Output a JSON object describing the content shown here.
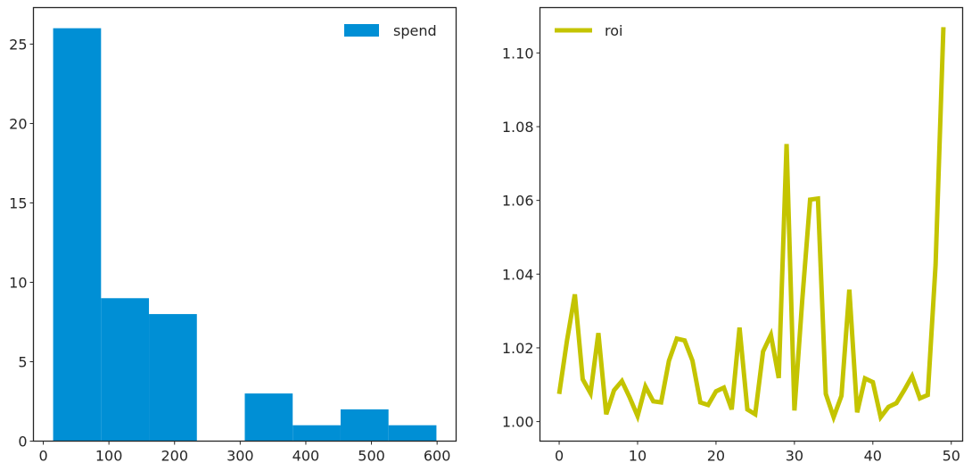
{
  "chart_data": [
    {
      "type": "bar",
      "subtype": "histogram",
      "series": [
        {
          "name": "spend",
          "color": "#008fd5"
        }
      ],
      "legend": {
        "label": "spend",
        "position": "top-right"
      },
      "bins": [
        {
          "start": 15,
          "end": 88,
          "count": 26
        },
        {
          "start": 88,
          "end": 161,
          "count": 9
        },
        {
          "start": 161,
          "end": 234,
          "count": 8
        },
        {
          "start": 234,
          "end": 307,
          "count": 0
        },
        {
          "start": 307,
          "end": 380,
          "count": 3
        },
        {
          "start": 380,
          "end": 453,
          "count": 1
        },
        {
          "start": 453,
          "end": 526,
          "count": 2
        },
        {
          "start": 526,
          "end": 599,
          "count": 1
        }
      ],
      "xlim": [
        -15,
        629
      ],
      "ylim": [
        0,
        27.3
      ],
      "xticks": [
        0,
        100,
        200,
        300,
        400,
        500,
        600
      ],
      "xtick_labels": [
        "0",
        "100",
        "200",
        "300",
        "400",
        "500",
        "600"
      ],
      "yticks": [
        0,
        5,
        10,
        15,
        20,
        25
      ],
      "ytick_labels": [
        "0",
        "5",
        "10",
        "15",
        "20",
        "25"
      ],
      "title": "",
      "xlabel": "",
      "ylabel": "",
      "grid": false
    },
    {
      "type": "line",
      "series": [
        {
          "name": "roi",
          "color": "#c4c400",
          "x": [
            0,
            1,
            2,
            3,
            4,
            5,
            6,
            7,
            8,
            9,
            10,
            11,
            12,
            13,
            14,
            15,
            16,
            17,
            18,
            19,
            20,
            21,
            22,
            23,
            24,
            25,
            26,
            27,
            28,
            29,
            30,
            31,
            32,
            33,
            34,
            35,
            36,
            37,
            38,
            39,
            40,
            41,
            42,
            43,
            44,
            45,
            46,
            47,
            48,
            49
          ],
          "values": [
            1.0075,
            1.022,
            1.0345,
            1.0115,
            1.0077,
            1.024,
            1.002,
            1.0085,
            1.011,
            1.0065,
            1.0015,
            1.0095,
            1.0055,
            1.0052,
            1.0165,
            1.0225,
            1.022,
            1.0165,
            1.0052,
            1.0045,
            1.0082,
            1.0092,
            1.0033,
            1.0255,
            1.0033,
            1.002,
            1.019,
            1.0235,
            1.0118,
            1.0753,
            1.003,
            1.033,
            1.0602,
            1.0605,
            1.0075,
            1.0012,
            1.007,
            1.0358,
            1.0025,
            1.0117,
            1.0107,
            1.0012,
            1.004,
            1.005,
            1.0085,
            1.0123,
            1.0063,
            1.0072,
            1.0425,
            1.107
          ]
        }
      ],
      "legend": {
        "label": "roi",
        "position": "top-left"
      },
      "xlim": [
        -2.45,
        51.45
      ],
      "ylim": [
        0.9947,
        1.1123
      ],
      "xticks": [
        0,
        10,
        20,
        30,
        40,
        50
      ],
      "xtick_labels": [
        "0",
        "10",
        "20",
        "30",
        "40",
        "50"
      ],
      "yticks": [
        1.0,
        1.02,
        1.04,
        1.06,
        1.08,
        1.1
      ],
      "ytick_labels": [
        "1.00",
        "1.02",
        "1.04",
        "1.06",
        "1.08",
        "1.10"
      ],
      "title": "",
      "xlabel": "",
      "ylabel": "",
      "grid": false
    }
  ]
}
